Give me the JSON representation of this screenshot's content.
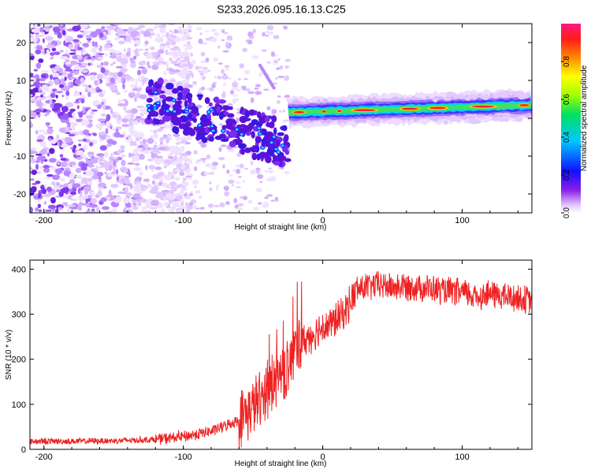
{
  "chart_data": [
    {
      "type": "heatmap",
      "title": "S233.2026.095.16.13.C25",
      "xlabel": "Height of straight line (km)",
      "ylabel": "Frequency (Hz)",
      "xlim": [
        -210,
        150
      ],
      "ylim": [
        -25,
        25
      ],
      "xticks": [
        -200,
        -100,
        0,
        100
      ],
      "yticks": [
        -20,
        -10,
        0,
        10,
        20
      ],
      "colorbar": {
        "label": "Normalized spectral amplitude",
        "range": [
          0,
          1
        ],
        "ticks": [
          0.0,
          0.2,
          0.4,
          0.6,
          0.8
        ],
        "tick_labels": [
          "0.0",
          "0.2",
          "0.4",
          "0.6",
          "0.8"
        ],
        "colormap": "rainbow"
      },
      "features": {
        "noise_region_x": [
          -210,
          -110
        ],
        "oblique_trace": {
          "x": [
            -125,
            -25
          ],
          "y": [
            5,
            -7
          ]
        },
        "oblique_trace_2": {
          "x": [
            -45,
            -35
          ],
          "y": [
            14,
            8
          ]
        },
        "stable_line": {
          "x": [
            -25,
            150
          ],
          "y": [
            1.5,
            3.5
          ]
        }
      }
    },
    {
      "type": "line",
      "title": "",
      "xlabel": "Height of straight line (km)",
      "ylabel": "SNR (10 * v/v)",
      "xlim": [
        -210,
        150
      ],
      "ylim": [
        0,
        420
      ],
      "xticks": [
        -200,
        -100,
        0,
        100
      ],
      "yticks": [
        0,
        100,
        200,
        300,
        400
      ],
      "series": [
        {
          "name": "SNR",
          "color": "#ee2222",
          "x": [
            -210,
            -180,
            -150,
            -120,
            -100,
            -80,
            -60,
            -50,
            -40,
            -30,
            -25,
            -20,
            -15,
            -10,
            -5,
            0,
            5,
            10,
            15,
            20,
            25,
            30,
            40,
            50,
            60,
            70,
            80,
            90,
            100,
            110,
            120,
            130,
            140,
            150
          ],
          "y": [
            18,
            18,
            19,
            22,
            28,
            40,
            65,
            95,
            130,
            170,
            175,
            220,
            235,
            250,
            260,
            275,
            275,
            290,
            300,
            330,
            355,
            360,
            365,
            360,
            362,
            360,
            355,
            350,
            348,
            340,
            345,
            340,
            335,
            330
          ]
        }
      ]
    }
  ]
}
